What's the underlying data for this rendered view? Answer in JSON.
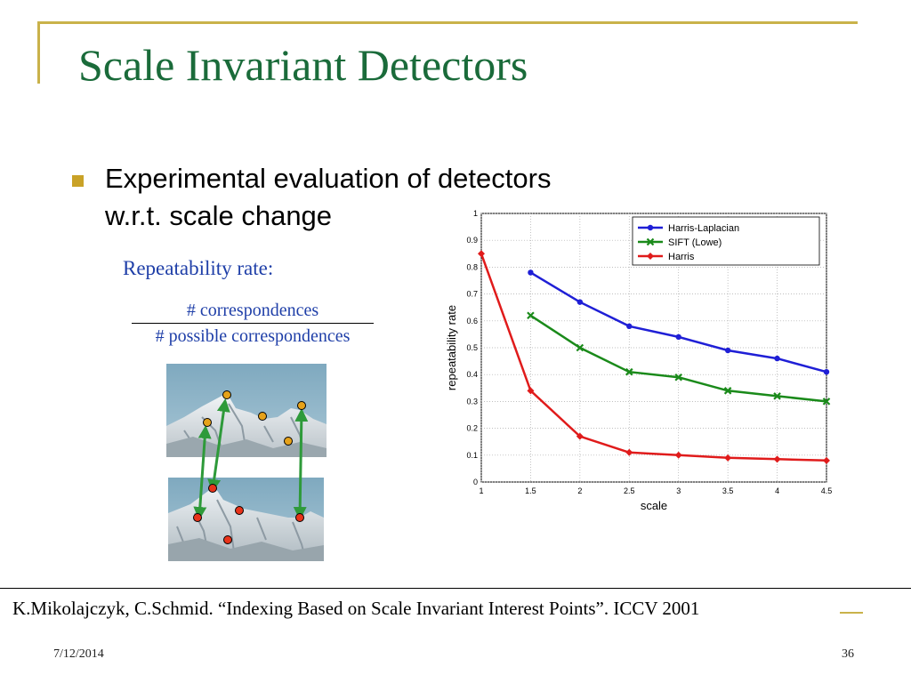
{
  "slide": {
    "title": "Scale Invariant Detectors",
    "bullet_line1": "Experimental evaluation of detectors",
    "bullet_line2": "w.r.t. scale change",
    "repeatability_label": "Repeatability rate:",
    "numerator": "# correspondences",
    "denominator": "# possible correspondences",
    "reference": "K.Mikolajczyk, C.Schmid. “Indexing Based on Scale Invariant Interest Points”. ICCV 2001",
    "date": "7/12/2014",
    "page": "36"
  },
  "colors": {
    "title": "#1a6b3a",
    "bullet": "#c9a227",
    "formula_text": "#1f3fa8",
    "frame": "#c9b24a"
  },
  "chart_data": {
    "type": "line",
    "title": "",
    "xlabel": "scale",
    "ylabel": "repeatability rate",
    "xlim": [
      1,
      4.5
    ],
    "ylim": [
      0,
      1
    ],
    "grid": true,
    "legend_position": "top-right",
    "x_ticks": [
      "1",
      "1.5",
      "2",
      "2.5",
      "3",
      "3.5",
      "4",
      "4.5"
    ],
    "y_ticks": [
      "0",
      "0.1",
      "0.2",
      "0.3",
      "0.4",
      "0.5",
      "0.6",
      "0.7",
      "0.8",
      "0.9",
      "1"
    ],
    "series": [
      {
        "name": "Harris-Laplacian",
        "color": "#1f1fd6",
        "marker": "circle",
        "x": [
          1.5,
          2,
          2.5,
          3,
          3.5,
          4,
          4.5
        ],
        "y": [
          0.78,
          0.67,
          0.58,
          0.54,
          0.49,
          0.46,
          0.41
        ]
      },
      {
        "name": "SIFT (Lowe)",
        "color": "#1a8a1a",
        "marker": "x",
        "x": [
          1.5,
          2,
          2.5,
          3,
          3.5,
          4,
          4.5
        ],
        "y": [
          0.62,
          0.5,
          0.41,
          0.39,
          0.34,
          0.32,
          0.3
        ]
      },
      {
        "name": "Harris",
        "color": "#e01b1b",
        "marker": "diamond",
        "x": [
          1,
          1.5,
          2,
          2.5,
          3,
          3.5,
          4,
          4.5
        ],
        "y": [
          0.85,
          0.34,
          0.17,
          0.11,
          0.1,
          0.09,
          0.085,
          0.08
        ]
      }
    ]
  },
  "images": {
    "top_photo": "mountain-peak-photo",
    "bottom_photo": "mountain-peak-scaled-photo",
    "top_points_color": "#e6a21a",
    "bottom_points_color": "#e8331a",
    "arrow_color": "#2e9a3a"
  }
}
